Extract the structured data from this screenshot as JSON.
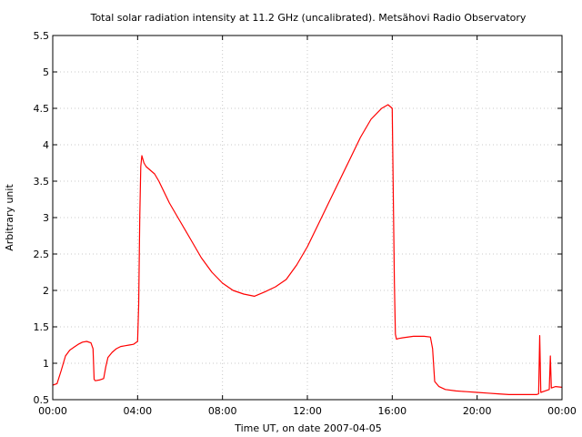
{
  "chart_data": {
    "type": "line",
    "title": "Total solar radiation intensity at 11.2 GHz (uncalibrated). Metsähovi Radio Observatory",
    "xlabel": "Time UT, on date 2007-04-05",
    "ylabel": "Arbitrary unit",
    "xlim": [
      0,
      24
    ],
    "ylim": [
      0.5,
      5.5
    ],
    "x_ticks": [
      0,
      4,
      8,
      12,
      16,
      20,
      24
    ],
    "x_tick_labels": [
      "00:00",
      "04:00",
      "08:00",
      "12:00",
      "16:00",
      "20:00",
      "00:00"
    ],
    "y_ticks": [
      0.5,
      1,
      1.5,
      2,
      2.5,
      3,
      3.5,
      4,
      4.5,
      5,
      5.5
    ],
    "y_tick_labels": [
      "0.5",
      "1",
      "1.5",
      "2",
      "2.5",
      "3",
      "3.5",
      "4",
      "4.5",
      "5",
      "5.5"
    ],
    "grid": true,
    "line_color": "#ff0000",
    "series": [
      {
        "x": [
          0.0,
          0.2,
          0.4,
          0.6,
          0.8,
          1.0,
          1.2,
          1.4,
          1.6,
          1.8,
          1.9,
          1.95,
          2.0,
          2.2,
          2.4,
          2.5,
          2.6,
          2.8,
          3.0,
          3.2,
          3.4,
          3.6,
          3.8,
          4.0,
          4.05,
          4.1,
          4.15,
          4.2,
          4.3,
          4.4,
          4.6,
          4.8,
          5.0,
          5.5,
          6.0,
          6.5,
          7.0,
          7.5,
          8.0,
          8.5,
          9.0,
          9.5,
          10.0,
          10.5,
          11.0,
          11.5,
          12.0,
          12.5,
          13.0,
          13.5,
          14.0,
          14.5,
          15.0,
          15.5,
          15.8,
          16.0,
          16.1,
          16.15,
          16.2,
          16.3,
          16.5,
          17.0,
          17.5,
          17.8,
          17.9,
          18.0,
          18.2,
          18.5,
          19.0,
          19.5,
          20.0,
          20.5,
          21.0,
          21.5,
          22.0,
          22.5,
          22.8,
          22.9,
          22.95,
          23.0,
          23.2,
          23.4,
          23.45,
          23.5,
          23.7,
          24.0
        ],
        "y": [
          0.7,
          0.72,
          0.9,
          1.1,
          1.18,
          1.22,
          1.26,
          1.29,
          1.3,
          1.28,
          1.2,
          0.78,
          0.76,
          0.77,
          0.79,
          0.95,
          1.08,
          1.15,
          1.2,
          1.23,
          1.24,
          1.25,
          1.26,
          1.3,
          1.8,
          3.0,
          3.7,
          3.85,
          3.75,
          3.7,
          3.65,
          3.6,
          3.5,
          3.2,
          2.95,
          2.7,
          2.45,
          2.25,
          2.1,
          2.0,
          1.95,
          1.92,
          1.98,
          2.05,
          2.15,
          2.35,
          2.6,
          2.9,
          3.2,
          3.5,
          3.8,
          4.1,
          4.35,
          4.5,
          4.55,
          4.5,
          2.1,
          1.4,
          1.33,
          1.34,
          1.35,
          1.37,
          1.37,
          1.36,
          1.2,
          0.75,
          0.68,
          0.64,
          0.62,
          0.61,
          0.6,
          0.59,
          0.58,
          0.57,
          0.57,
          0.57,
          0.57,
          0.58,
          1.38,
          0.6,
          0.62,
          0.64,
          1.1,
          0.66,
          0.68,
          0.67
        ]
      }
    ]
  }
}
